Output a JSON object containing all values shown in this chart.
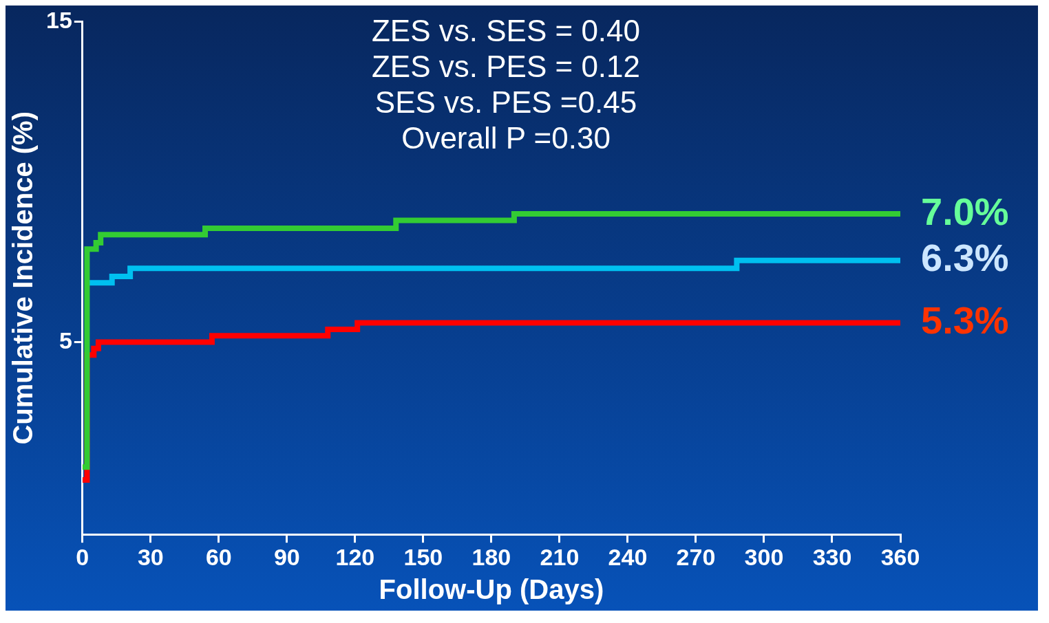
{
  "chart_data": {
    "type": "step",
    "xlabel": "Follow-Up (Days)",
    "ylabel": "Cumulative Incidence (%)",
    "xlim": [
      0,
      360
    ],
    "xticks": [
      0,
      30,
      60,
      90,
      120,
      150,
      180,
      210,
      240,
      270,
      300,
      330,
      360
    ],
    "ylim": [
      -1,
      15
    ],
    "yticks": [
      5,
      15
    ],
    "grid": false,
    "legend": false,
    "series": [
      {
        "color": "#33cc33",
        "x": [
          0,
          2,
          6,
          8,
          54,
          138,
          190,
          360
        ],
        "values": [
          1.1,
          7.9,
          8.1,
          8.35,
          8.55,
          8.8,
          9.0,
          9.0
        ]
      },
      {
        "color": "#00c0f0",
        "x": [
          2,
          13,
          21,
          288,
          360
        ],
        "values": [
          6.85,
          7.05,
          7.3,
          7.55,
          7.55
        ]
      },
      {
        "color": "#ff0000",
        "x": [
          0,
          2,
          5,
          7,
          57,
          108,
          121,
          360
        ],
        "values": [
          0.7,
          4.6,
          4.8,
          5.0,
          5.2,
          5.4,
          5.6,
          5.6
        ]
      }
    ],
    "annotations": [
      "ZES vs. SES = 0.40",
      "ZES vs. PES = 0.12",
      "SES vs. PES =0.45",
      "Overall P =0.30",
      "7.0%",
      "6.3%",
      "5.3%"
    ]
  }
}
